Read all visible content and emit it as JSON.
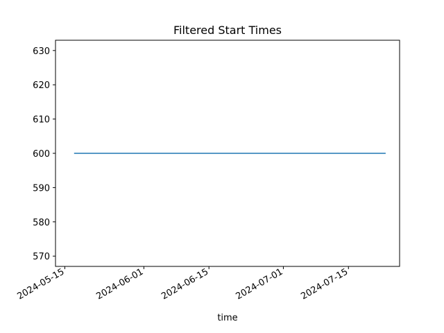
{
  "chart_data": {
    "type": "line",
    "title": "Filtered Start Times",
    "xlabel": "time",
    "ylabel": "",
    "x_tick_labels": [
      "2024-05-15",
      "2024-06-01",
      "2024-06-15",
      "2024-07-01",
      "2024-07-15"
    ],
    "x_ticks": [
      "2024-05-15",
      "2024-06-01",
      "2024-06-15",
      "2024-07-01",
      "2024-07-15"
    ],
    "y_ticks": [
      570,
      580,
      590,
      600,
      610,
      620,
      630
    ],
    "xlim": [
      "2024-05-13",
      "2024-07-26"
    ],
    "ylim": [
      567,
      633
    ],
    "grid": false,
    "series": [
      {
        "x": [
          "2024-05-17",
          "2024-07-23"
        ],
        "y": [
          600,
          600
        ],
        "color": "#1f77b4"
      }
    ]
  }
}
